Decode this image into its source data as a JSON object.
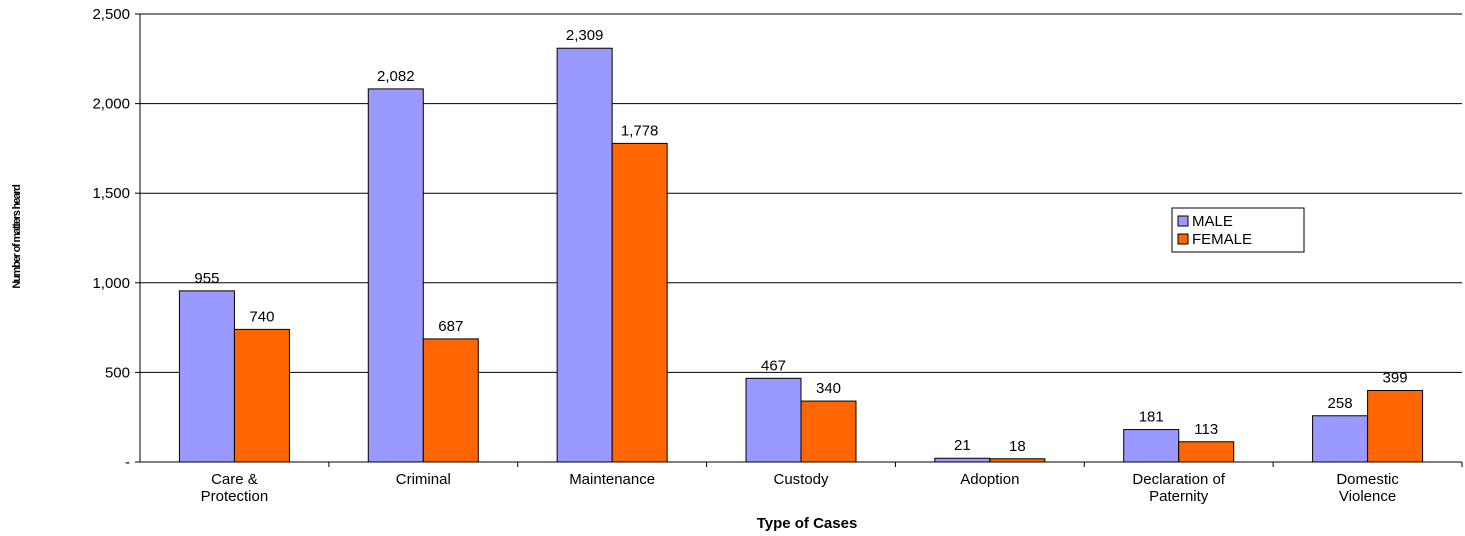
{
  "chart_data": {
    "type": "bar",
    "title": "",
    "xlabel": "Type of Cases",
    "ylabel": "Number of matters heard",
    "ylim": [
      0,
      2500
    ],
    "yticks": [
      {
        "value": 0,
        "label": "-"
      },
      {
        "value": 500,
        "label": "500"
      },
      {
        "value": 1000,
        "label": "1,000"
      },
      {
        "value": 1500,
        "label": "1,500"
      },
      {
        "value": 2000,
        "label": "2,000"
      },
      {
        "value": 2500,
        "label": "2,500"
      }
    ],
    "grid": true,
    "legend_position": "right",
    "categories": [
      [
        "Care &",
        "Protection"
      ],
      [
        "Criminal"
      ],
      [
        "Maintenance"
      ],
      [
        "Custody"
      ],
      [
        "Adoption"
      ],
      [
        "Declaration of",
        "Paternity"
      ],
      [
        "Domestic",
        "Violence"
      ]
    ],
    "series": [
      {
        "name": "MALE",
        "color": "#9999ff",
        "values": [
          955,
          2082,
          2309,
          467,
          21,
          181,
          258
        ],
        "labels": [
          "955",
          "2,082",
          "2,309",
          "467",
          "21",
          "181",
          "258"
        ]
      },
      {
        "name": "FEMALE",
        "color": "#ff6600",
        "values": [
          740,
          687,
          1778,
          340,
          18,
          113,
          399
        ],
        "labels": [
          "740",
          "687",
          "1,778",
          "340",
          "18",
          "113",
          "399"
        ]
      }
    ]
  }
}
